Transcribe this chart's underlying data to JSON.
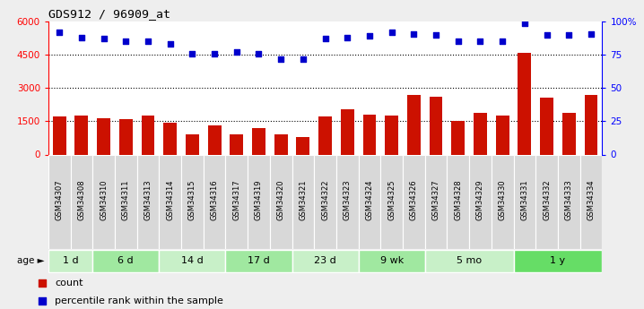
{
  "title": "GDS912 / 96909_at",
  "samples": [
    "GSM34307",
    "GSM34308",
    "GSM34310",
    "GSM34311",
    "GSM34313",
    "GSM34314",
    "GSM34315",
    "GSM34316",
    "GSM34317",
    "GSM34319",
    "GSM34320",
    "GSM34321",
    "GSM34322",
    "GSM34323",
    "GSM34324",
    "GSM34325",
    "GSM34326",
    "GSM34327",
    "GSM34328",
    "GSM34329",
    "GSM34330",
    "GSM34331",
    "GSM34332",
    "GSM34333",
    "GSM34334"
  ],
  "counts": [
    1700,
    1750,
    1650,
    1600,
    1750,
    1450,
    900,
    1300,
    900,
    1200,
    900,
    800,
    1700,
    2050,
    1800,
    1750,
    2700,
    2600,
    1500,
    1900,
    1750,
    4600,
    2550,
    1900,
    2700
  ],
  "percentile": [
    92,
    88,
    87,
    85,
    85,
    83,
    76,
    76,
    77,
    76,
    72,
    72,
    87,
    88,
    89,
    92,
    91,
    90,
    85,
    85,
    85,
    99,
    90,
    90,
    91
  ],
  "age_groups": [
    {
      "label": "1 d",
      "start": 0,
      "end": 2,
      "color": "#c8f0c8"
    },
    {
      "label": "6 d",
      "start": 2,
      "end": 5,
      "color": "#a0e8a0"
    },
    {
      "label": "14 d",
      "start": 5,
      "end": 8,
      "color": "#c8f0c8"
    },
    {
      "label": "17 d",
      "start": 8,
      "end": 11,
      "color": "#a0e8a0"
    },
    {
      "label": "23 d",
      "start": 11,
      "end": 14,
      "color": "#c8f0c8"
    },
    {
      "label": "9 wk",
      "start": 14,
      "end": 17,
      "color": "#a0e8a0"
    },
    {
      "label": "5 mo",
      "start": 17,
      "end": 21,
      "color": "#c8f0c8"
    },
    {
      "label": "1 y",
      "start": 21,
      "end": 25,
      "color": "#66dd66"
    }
  ],
  "ylim_left": [
    0,
    6000
  ],
  "ylim_right": [
    0,
    100
  ],
  "yticks_left": [
    0,
    1500,
    3000,
    4500,
    6000
  ],
  "yticks_right": [
    0,
    25,
    50,
    75,
    100
  ],
  "bar_color": "#cc1100",
  "dot_color": "#0000cc",
  "bg_color": "#eeeeee",
  "plot_bg": "#ffffff",
  "tick_bg": "#d8d8d8",
  "legend_count_label": "count",
  "legend_pct_label": "percentile rank within the sample"
}
